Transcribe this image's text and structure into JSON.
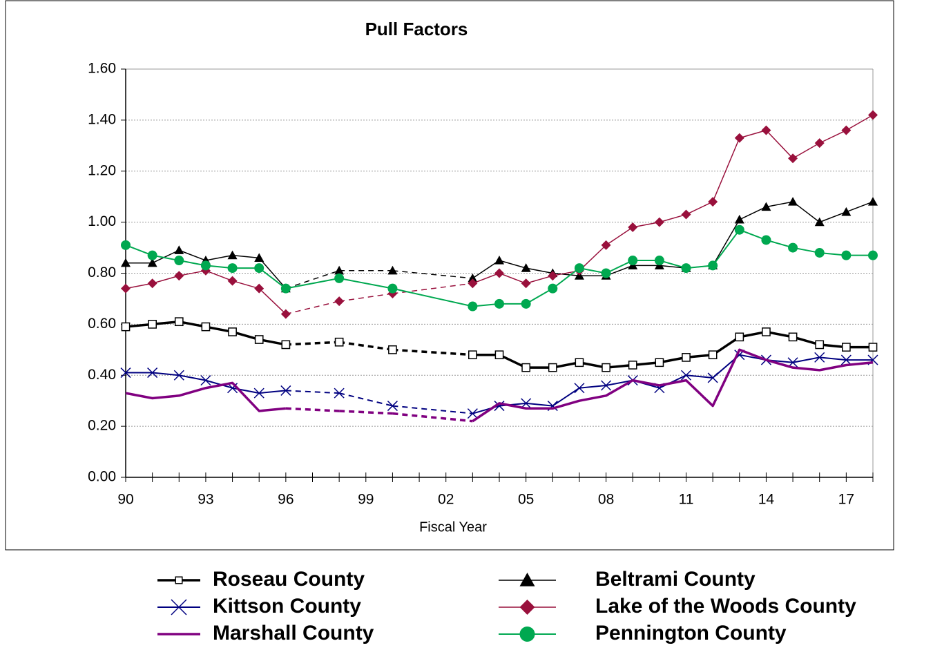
{
  "chart_data": {
    "type": "line",
    "title": "Pull Factors",
    "x_label": "Fiscal Year",
    "categories": [
      "90",
      null,
      null,
      "93",
      null,
      null,
      "96",
      null,
      null,
      "99",
      null,
      null,
      "02",
      null,
      null,
      "05",
      null,
      null,
      "08",
      null,
      null,
      "11",
      null,
      null,
      "14",
      null,
      null,
      "17",
      null
    ],
    "ylim": [
      0,
      1.6
    ],
    "yticks": [
      {
        "value": 0,
        "label": "0.00"
      },
      {
        "value": 0.2,
        "label": "0.20"
      },
      {
        "value": 0.4,
        "label": "0.40"
      },
      {
        "value": 0.6,
        "label": "0.60"
      },
      {
        "value": 0.8,
        "label": "0.80"
      },
      {
        "value": 1.0,
        "label": "1.00"
      },
      {
        "value": 1.2,
        "label": "1.20"
      },
      {
        "value": 1.4,
        "label": "1.40"
      },
      {
        "value": 1.6,
        "label": "1.60"
      }
    ],
    "grid": true,
    "legend": "bottom",
    "series": [
      {
        "name": "Roseau County",
        "color": "#000000",
        "marker": "square",
        "width": 3.5,
        "dashed_gaps": true,
        "values": [
          0.59,
          0.6,
          0.61,
          0.59,
          0.57,
          0.54,
          0.52,
          null,
          0.53,
          null,
          0.5,
          null,
          null,
          0.48,
          0.48,
          0.43,
          0.43,
          0.45,
          0.43,
          0.44,
          0.45,
          0.47,
          0.48,
          0.55,
          0.57,
          0.55,
          0.52,
          0.51,
          0.51
        ]
      },
      {
        "name": "Kittson County",
        "color": "#000080",
        "marker": "x",
        "width": 2,
        "dashed_gaps": true,
        "values": [
          0.41,
          0.41,
          0.4,
          0.38,
          0.35,
          0.33,
          0.34,
          null,
          0.33,
          null,
          0.28,
          null,
          null,
          0.25,
          0.28,
          0.29,
          0.28,
          0.35,
          0.36,
          0.38,
          0.35,
          0.4,
          0.39,
          0.48,
          0.46,
          0.45,
          0.47,
          0.46,
          0.46
        ]
      },
      {
        "name": "Marshall County",
        "color": "#800080",
        "marker": "none",
        "width": 3.5,
        "dashed_gaps": true,
        "values": [
          0.33,
          0.31,
          0.32,
          0.35,
          0.37,
          0.26,
          0.27,
          null,
          0.26,
          null,
          0.25,
          null,
          null,
          0.22,
          0.29,
          0.27,
          0.27,
          0.3,
          0.32,
          0.38,
          0.36,
          0.38,
          0.28,
          0.5,
          0.46,
          0.43,
          0.42,
          0.44,
          0.45
        ]
      },
      {
        "name": "Beltrami County",
        "color": "#000000",
        "marker": "triangle",
        "width": 1.5,
        "dashed_gaps": true,
        "values": [
          0.84,
          0.84,
          0.89,
          0.85,
          0.87,
          0.86,
          0.74,
          null,
          0.81,
          null,
          0.81,
          null,
          null,
          0.78,
          0.85,
          0.82,
          0.8,
          0.79,
          0.79,
          0.83,
          0.83,
          0.82,
          0.83,
          1.01,
          1.06,
          1.08,
          1.0,
          1.04,
          1.08
        ]
      },
      {
        "name": "Lake of the Woods County",
        "color": "#99103c",
        "marker": "diamond",
        "width": 1.5,
        "dashed_gaps": true,
        "values": [
          0.74,
          0.76,
          0.79,
          0.81,
          0.77,
          0.74,
          0.64,
          null,
          0.69,
          null,
          0.72,
          null,
          null,
          0.76,
          0.8,
          0.76,
          0.79,
          0.81,
          0.91,
          0.98,
          1.0,
          1.03,
          1.08,
          1.33,
          1.36,
          1.25,
          1.31,
          1.36,
          1.42
        ]
      },
      {
        "name": "Pennington County",
        "color": "#00a850",
        "marker": "circle",
        "width": 2,
        "dashed_gaps": false,
        "values": [
          0.91,
          0.87,
          0.85,
          0.83,
          0.82,
          0.82,
          0.74,
          null,
          0.78,
          null,
          0.74,
          null,
          null,
          0.67,
          0.68,
          0.68,
          0.74,
          0.82,
          0.8,
          0.85,
          0.85,
          0.82,
          0.83,
          0.97,
          0.93,
          0.9,
          0.88,
          0.87,
          0.87
        ]
      }
    ]
  }
}
